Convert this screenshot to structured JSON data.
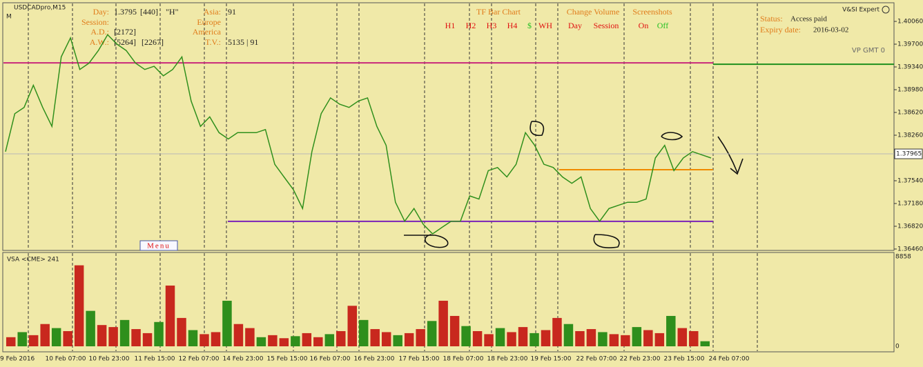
{
  "header": {
    "symbol": "USDCADpro,M15",
    "marker": "M"
  },
  "info_panel": {
    "day_label": "Day:",
    "day_price": "1.3795",
    "day_count": "[440]",
    "day_flag": "\"H\"",
    "session_label": "Session:",
    "ad_label": "A.D.:",
    "ad_value": "[2172]",
    "aw_label": "A.W.:",
    "aw_value_1": "[5264]",
    "aw_value_2": "[2267]",
    "asia_label": "Asia:",
    "asia_value": "91",
    "europe_label": "Europe",
    "america_label": "America",
    "tv_label": "T.V.:",
    "tv_value": "5135 | 91"
  },
  "tf_panel": {
    "title": "TF Bar Chart",
    "items": [
      "H1",
      "H2",
      "H3",
      "H4",
      "$",
      "WH"
    ]
  },
  "volume_panel": {
    "title": "Change Volume",
    "items": [
      "Day",
      "Session"
    ]
  },
  "screenshot_panel": {
    "title": "Screenshots",
    "items": [
      "On",
      "Off"
    ]
  },
  "expert": {
    "name": "V&SI Expert",
    "status_label": "Status:",
    "status_value": "Access paid",
    "expiry_label": "Expiry date:",
    "expiry_value": "2016-03-02",
    "vp_label": "VP GMT 0"
  },
  "menu": {
    "label": "Menu"
  },
  "price_chart": {
    "type": "line",
    "color": "#2f8f1c",
    "ylim": [
      1.36438,
      1.40344
    ],
    "yticks": [
      {
        "value": 1.4006,
        "label": "1.40060"
      },
      {
        "value": 1.397,
        "label": "1.39700"
      },
      {
        "value": 1.3934,
        "label": "1.39340"
      },
      {
        "value": 1.3898,
        "label": "1.38980"
      },
      {
        "value": 1.3862,
        "label": "1.38620"
      },
      {
        "value": 1.3826,
        "label": "1.38260"
      },
      {
        "value": 1.3754,
        "label": "1.37540"
      },
      {
        "value": 1.3718,
        "label": "1.37180"
      },
      {
        "value": 1.3682,
        "label": "1.36820"
      },
      {
        "value": 1.3646,
        "label": "1.36460"
      }
    ],
    "current_price": 1.37965,
    "levels": [
      {
        "value": 1.39405,
        "color": "#c8287a"
      },
      {
        "value": 1.39383,
        "color": "#1c8f1c"
      },
      {
        "value": 1.37715,
        "color": "#f08a00"
      },
      {
        "value": 1.36897,
        "color": "#7a22b8"
      }
    ],
    "values": [
      1.38,
      1.386,
      1.387,
      1.3905,
      1.387,
      1.384,
      1.395,
      1.398,
      1.393,
      1.394,
      1.396,
      1.3985,
      1.397,
      1.396,
      1.394,
      1.393,
      1.3935,
      1.392,
      1.393,
      1.395,
      1.388,
      1.384,
      1.3855,
      1.383,
      1.382,
      1.383,
      1.383,
      1.383,
      1.3835,
      1.378,
      1.376,
      1.374,
      1.371,
      1.38,
      1.386,
      1.3885,
      1.3875,
      1.387,
      1.388,
      1.3885,
      1.384,
      1.381,
      1.372,
      1.369,
      1.371,
      1.3685,
      1.367,
      1.368,
      1.369,
      1.369,
      1.373,
      1.3725,
      1.377,
      1.3775,
      1.376,
      1.378,
      1.383,
      1.381,
      1.378,
      1.3775,
      1.376,
      1.375,
      1.376,
      1.371,
      1.369,
      1.371,
      1.3715,
      1.372,
      1.372,
      1.3725,
      1.379,
      1.381,
      1.377,
      1.379,
      1.38,
      1.3795,
      1.379
    ]
  },
  "volume_chart": {
    "type": "bar",
    "title": "VSA <CME> 241",
    "color": "#c8281e",
    "ylim": [
      0,
      8858
    ],
    "yticks": [
      8858,
      0
    ],
    "values": [
      900,
      1400,
      1100,
      2200,
      1800,
      1500,
      8000,
      3500,
      2100,
      1900,
      2600,
      1700,
      1300,
      2400,
      6000,
      2800,
      1600,
      1200,
      1400,
      4500,
      2200,
      1800,
      900,
      1100,
      800,
      1000,
      1300,
      900,
      1200,
      1500,
      4000,
      2600,
      1700,
      1400,
      1100,
      1300,
      1700,
      2500,
      4500,
      3000,
      2000,
      1500,
      1200,
      1800,
      1400,
      1900,
      1300,
      1600,
      2800,
      2200,
      1500,
      1700,
      1400,
      1200,
      1100,
      1900,
      1600,
      1300,
      3000,
      1800,
      1500,
      500
    ],
    "x_labels": [
      "9 Feb 2016",
      "10 Feb 07:00",
      "10 Feb 23:00",
      "11 Feb 15:00",
      "12 Feb 07:00",
      "14 Feb 23:00",
      "15 Feb 15:00",
      "16 Feb 07:00",
      "16 Feb 23:00",
      "17 Feb 15:00",
      "18 Feb 07:00",
      "18 Feb 23:00",
      "19 Feb 15:00",
      "22 Feb 07:00",
      "22 Feb 23:00",
      "23 Feb 15:00",
      "24 Feb 07:00"
    ]
  }
}
